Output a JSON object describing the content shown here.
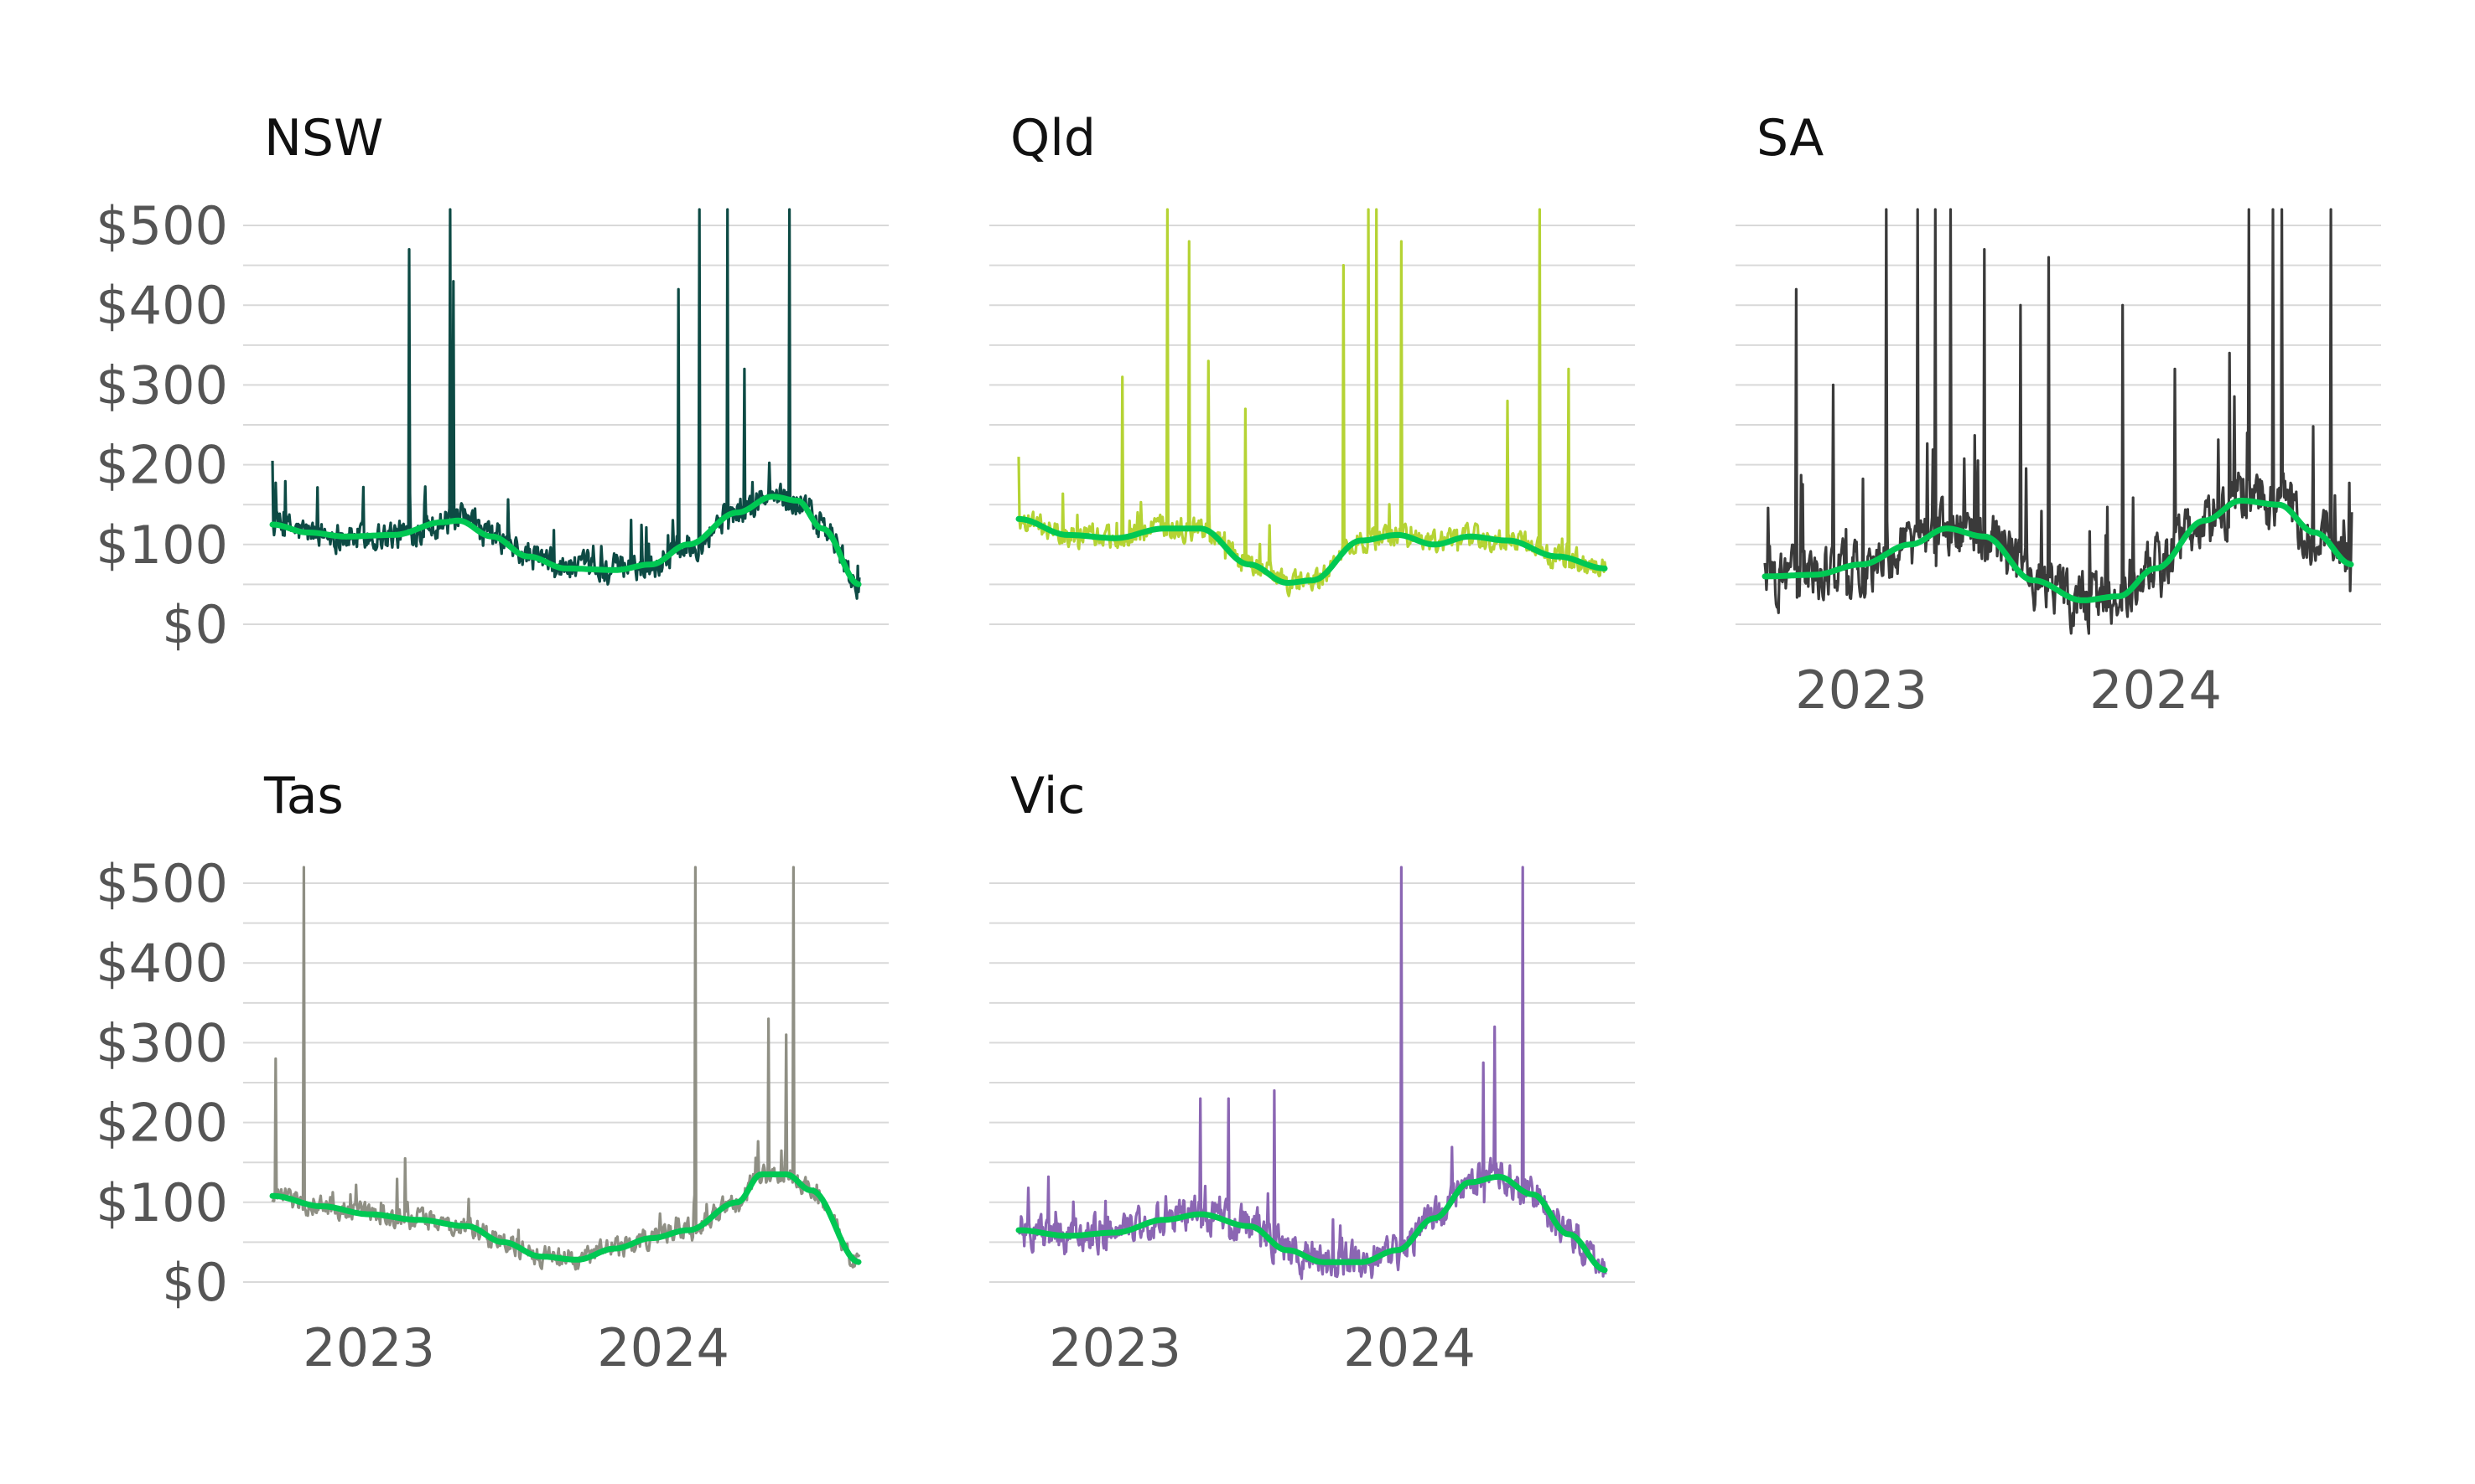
{
  "chart_data": {
    "type": "line",
    "title": "",
    "xlabel": "",
    "ylabel": "",
    "x_range": [
      "2022-11-01",
      "2024-10-31"
    ],
    "x_ticks": [
      "2023",
      "2024"
    ],
    "ylim": [
      0,
      520
    ],
    "y_ticks": [
      "$0",
      "$100",
      "$200",
      "$300",
      "$400",
      "$500"
    ],
    "y_tick_values": [
      0,
      100,
      200,
      300,
      400,
      500
    ],
    "grid": true,
    "legend": "none",
    "trend_color": "#00c853",
    "panels": [
      {
        "name": "NSW",
        "color": "#0d4a44",
        "trend": [
          [
            "2022-11-01",
            125
          ],
          [
            "2022-12-15",
            115
          ],
          [
            "2023-02-01",
            110
          ],
          [
            "2023-04-01",
            112
          ],
          [
            "2023-06-01",
            128
          ],
          [
            "2023-06-20",
            130
          ],
          [
            "2023-08-01",
            110
          ],
          [
            "2023-09-15",
            85
          ],
          [
            "2023-11-01",
            70
          ],
          [
            "2024-01-01",
            68
          ],
          [
            "2024-02-15",
            75
          ],
          [
            "2024-04-01",
            100
          ],
          [
            "2024-06-01",
            140
          ],
          [
            "2024-07-15",
            160
          ],
          [
            "2024-08-15",
            155
          ],
          [
            "2024-09-15",
            120
          ],
          [
            "2024-10-31",
            50
          ]
        ],
        "spikes": [
          [
            "2022-11-01",
            205
          ],
          [
            "2023-04-20",
            470
          ],
          [
            "2023-06-10",
            520
          ],
          [
            "2023-06-14",
            430
          ],
          [
            "2024-03-20",
            420
          ],
          [
            "2024-04-15",
            520
          ],
          [
            "2024-05-20",
            520
          ],
          [
            "2024-06-10",
            320
          ],
          [
            "2024-08-05",
            520
          ]
        ],
        "noise": 28
      },
      {
        "name": "Qld",
        "color": "#b5d334",
        "trend": [
          [
            "2022-11-01",
            132
          ],
          [
            "2023-01-01",
            112
          ],
          [
            "2023-03-01",
            108
          ],
          [
            "2023-05-01",
            120
          ],
          [
            "2023-06-15",
            120
          ],
          [
            "2023-08-15",
            75
          ],
          [
            "2023-10-01",
            52
          ],
          [
            "2023-11-01",
            55
          ],
          [
            "2024-01-01",
            105
          ],
          [
            "2024-02-15",
            112
          ],
          [
            "2024-04-01",
            100
          ],
          [
            "2024-05-15",
            110
          ],
          [
            "2024-07-01",
            105
          ],
          [
            "2024-09-01",
            85
          ],
          [
            "2024-10-31",
            70
          ]
        ],
        "spikes": [
          [
            "2022-11-01",
            210
          ],
          [
            "2023-03-10",
            310
          ],
          [
            "2023-05-05",
            520
          ],
          [
            "2023-06-01",
            480
          ],
          [
            "2023-06-25",
            330
          ],
          [
            "2023-08-10",
            270
          ],
          [
            "2023-12-10",
            450
          ],
          [
            "2024-01-10",
            520
          ],
          [
            "2024-01-20",
            520
          ],
          [
            "2024-02-20",
            480
          ],
          [
            "2024-07-01",
            280
          ],
          [
            "2024-08-10",
            520
          ],
          [
            "2024-09-15",
            320
          ]
        ],
        "noise": 22
      },
      {
        "name": "SA",
        "color": "#3a3a3a",
        "trend": [
          [
            "2022-11-01",
            60
          ],
          [
            "2023-01-01",
            62
          ],
          [
            "2023-03-01",
            75
          ],
          [
            "2023-05-01",
            100
          ],
          [
            "2023-06-15",
            120
          ],
          [
            "2023-08-01",
            110
          ],
          [
            "2023-10-01",
            55
          ],
          [
            "2023-12-01",
            30
          ],
          [
            "2024-01-15",
            35
          ],
          [
            "2024-03-01",
            70
          ],
          [
            "2024-05-01",
            130
          ],
          [
            "2024-06-15",
            155
          ],
          [
            "2024-08-01",
            150
          ],
          [
            "2024-09-15",
            115
          ],
          [
            "2024-10-31",
            75
          ]
        ],
        "spikes": [
          [
            "2022-12-10",
            420
          ],
          [
            "2023-01-25",
            300
          ],
          [
            "2023-04-01",
            520
          ],
          [
            "2023-05-10",
            520
          ],
          [
            "2023-06-01",
            520
          ],
          [
            "2023-06-20",
            520
          ],
          [
            "2023-08-01",
            470
          ],
          [
            "2023-09-15",
            400
          ],
          [
            "2023-10-20",
            460
          ],
          [
            "2024-01-20",
            400
          ],
          [
            "2024-03-25",
            320
          ],
          [
            "2024-06-01",
            340
          ],
          [
            "2024-06-25",
            520
          ],
          [
            "2024-07-25",
            520
          ],
          [
            "2024-08-05",
            520
          ],
          [
            "2024-10-05",
            520
          ]
        ],
        "noise": 55
      },
      {
        "name": "Tas",
        "color": "#8f8f84",
        "trend": [
          [
            "2022-11-01",
            108
          ],
          [
            "2023-01-01",
            95
          ],
          [
            "2023-03-01",
            85
          ],
          [
            "2023-05-01",
            78
          ],
          [
            "2023-07-01",
            70
          ],
          [
            "2023-08-15",
            50
          ],
          [
            "2023-10-01",
            32
          ],
          [
            "2023-11-15",
            28
          ],
          [
            "2024-01-01",
            42
          ],
          [
            "2024-02-15",
            55
          ],
          [
            "2024-04-01",
            65
          ],
          [
            "2024-06-01",
            100
          ],
          [
            "2024-07-01",
            135
          ],
          [
            "2024-08-01",
            135
          ],
          [
            "2024-09-01",
            115
          ],
          [
            "2024-10-31",
            25
          ]
        ],
        "spikes": [
          [
            "2022-11-05",
            280
          ],
          [
            "2022-12-10",
            520
          ],
          [
            "2023-04-15",
            155
          ],
          [
            "2024-04-10",
            520
          ],
          [
            "2024-08-10",
            520
          ],
          [
            "2024-08-01",
            310
          ],
          [
            "2024-07-10",
            330
          ]
        ],
        "noise": 20
      },
      {
        "name": "Vic",
        "color": "#8b66b3",
        "trend": [
          [
            "2022-11-01",
            65
          ],
          [
            "2023-01-01",
            58
          ],
          [
            "2023-03-01",
            62
          ],
          [
            "2023-05-01",
            78
          ],
          [
            "2023-06-15",
            85
          ],
          [
            "2023-08-15",
            70
          ],
          [
            "2023-10-01",
            40
          ],
          [
            "2023-11-15",
            25
          ],
          [
            "2024-01-01",
            25
          ],
          [
            "2024-02-15",
            40
          ],
          [
            "2024-04-01",
            80
          ],
          [
            "2024-05-15",
            125
          ],
          [
            "2024-06-20",
            132
          ],
          [
            "2024-08-01",
            110
          ],
          [
            "2024-09-15",
            60
          ],
          [
            "2024-10-31",
            15
          ]
        ],
        "spikes": [
          [
            "2023-06-15",
            230
          ],
          [
            "2023-07-20",
            230
          ],
          [
            "2023-09-15",
            240
          ],
          [
            "2024-02-20",
            520
          ],
          [
            "2024-06-15",
            320
          ],
          [
            "2024-07-20",
            520
          ],
          [
            "2024-06-01",
            275
          ]
        ],
        "noise": 35
      }
    ]
  }
}
